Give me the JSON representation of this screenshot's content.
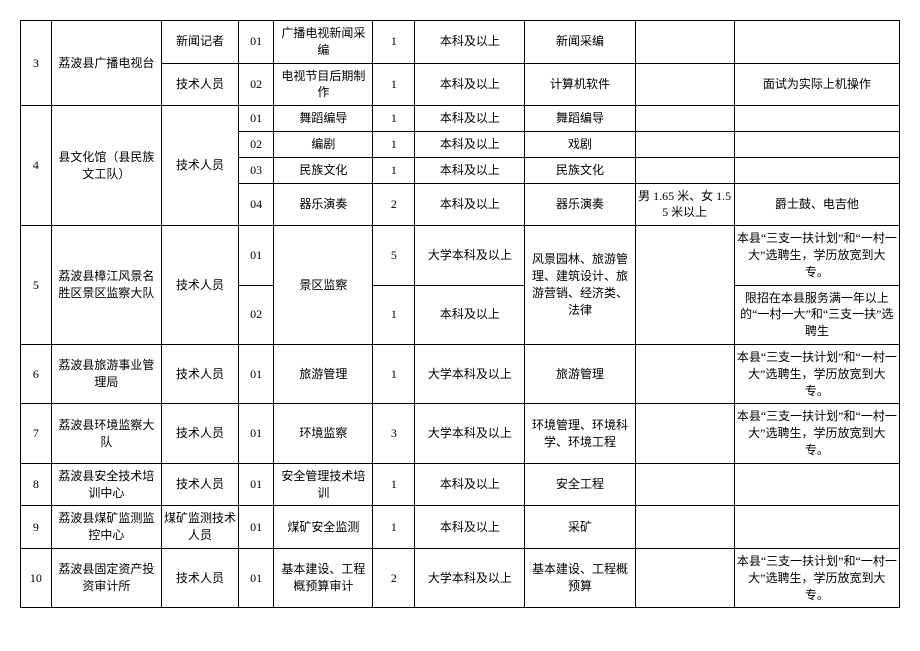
{
  "rows": [
    {
      "idx": "3",
      "org": "荔波县广播电视台",
      "pos": "新闻记者",
      "code": "01",
      "post": "广播电视新闻采编",
      "cnt": "1",
      "edu": "本科及以上",
      "maj": "新闻采编",
      "req": "",
      "note": ""
    },
    {
      "org_span": true,
      "pos": "技术人员",
      "code": "02",
      "post": "电视节目后期制作",
      "cnt": "1",
      "edu": "本科及以上",
      "maj": "计算机软件",
      "req": "",
      "note": "面试为实际上机操作"
    },
    {
      "idx": "4",
      "org": "县文化馆（县民族文工队）",
      "pos": "技术人员",
      "code": "01",
      "post": "舞蹈编导",
      "cnt": "1",
      "edu": "本科及以上",
      "maj": "舞蹈编导",
      "req": "",
      "note": ""
    },
    {
      "code": "02",
      "post": "编剧",
      "cnt": "1",
      "edu": "本科及以上",
      "maj": "戏剧",
      "req": "",
      "note": ""
    },
    {
      "code": "03",
      "post": "民族文化",
      "cnt": "1",
      "edu": "本科及以上",
      "maj": "民族文化",
      "req": "",
      "note": ""
    },
    {
      "code": "04",
      "post": "器乐演奏",
      "cnt": "2",
      "edu": "本科及以上",
      "maj": "器乐演奏",
      "req": "男 1.65 米、女 1.55 米以上",
      "note": "爵士鼓、电吉他"
    },
    {
      "idx": "5",
      "org": "荔波县樟江风景名胜区景区监察大队",
      "pos": "技术人员",
      "code": "01",
      "post": "景区监察",
      "cnt": "5",
      "edu": "大学本科及以上",
      "maj": "风景园林、旅游管理、建筑设计、旅游营销、经济类、法律",
      "req": "",
      "note": "本县“三支一扶计划”和“一村一大”选聘生，学历放宽到大专。"
    },
    {
      "code": "02",
      "cnt": "1",
      "edu": "本科及以上",
      "note": "限招在本县服务满一年以上的“一村一大”和“三支一扶”选聘生"
    },
    {
      "idx": "6",
      "org": "荔波县旅游事业管理局",
      "pos": "技术人员",
      "code": "01",
      "post": "旅游管理",
      "cnt": "1",
      "edu": "大学本科及以上",
      "maj": "旅游管理",
      "req": "",
      "note": "本县“三支一扶计划”和“一村一大”选聘生，学历放宽到大专。"
    },
    {
      "idx": "7",
      "org": "荔波县环境监察大队",
      "pos": "技术人员",
      "code": "01",
      "post": "环境监察",
      "cnt": "3",
      "edu": "大学本科及以上",
      "maj": "环境管理、环境科学、环境工程",
      "req": "",
      "note": "本县“三支一扶计划”和“一村一大”选聘生，学历放宽到大专。"
    },
    {
      "idx": "8",
      "org": "荔波县安全技术培训中心",
      "pos": "技术人员",
      "code": "01",
      "post": "安全管理技术培训",
      "cnt": "1",
      "edu": "本科及以上",
      "maj": "安全工程",
      "req": "",
      "note": ""
    },
    {
      "idx": "9",
      "org": "荔波县煤矿监测监控中心",
      "pos": "煤矿监测技术人员",
      "code": "01",
      "post": "煤矿安全监测",
      "cnt": "1",
      "edu": "本科及以上",
      "maj": "采矿",
      "req": "",
      "note": ""
    },
    {
      "idx": "10",
      "org": "荔波县固定资产投资审计所",
      "pos": "技术人员",
      "code": "01",
      "post": "基本建设、工程概预算审计",
      "cnt": "2",
      "edu": "大学本科及以上",
      "maj": "基本建设、工程概预算",
      "req": "",
      "note": "本县“三支一扶计划”和“一村一大”选聘生，学历放宽到大专。"
    }
  ]
}
